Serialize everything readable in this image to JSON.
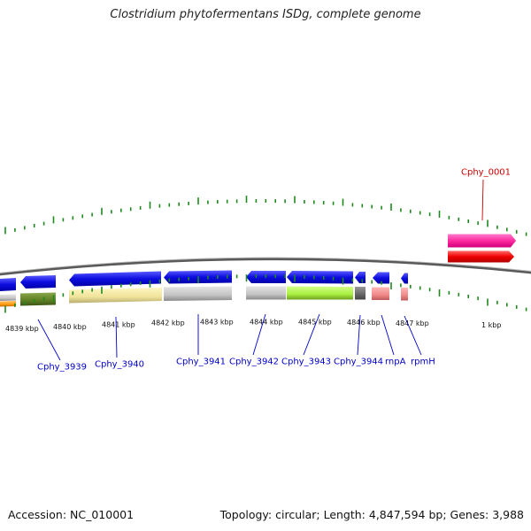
{
  "title": "Clostridium phytofermentans ISDg, complete genome",
  "footer": {
    "accession": "Accession: NC_010001",
    "summary": "Topology: circular; Length: 4,847,594 bp; Genes: 3,988"
  },
  "colors": {
    "backbone": "#6e6e6e",
    "tick": "#1e8a1e",
    "label_blue": "#0000cc",
    "label_red": "#cc0000"
  },
  "scale": {
    "unit": "kbp",
    "labels": [
      "4839 kbp",
      "4840 kbp",
      "4841 kbp",
      "4842 kbp",
      "4843 kbp",
      "4844 kbp",
      "4845 kbp",
      "4846 kbp",
      "4847 kbp",
      "1 kbp"
    ]
  },
  "genes": [
    {
      "name": "Cphy_0001",
      "strand": "+",
      "color": "#ff33aa",
      "label_color": "#cc0000"
    },
    {
      "name": "Cphy_3939",
      "strand": "-",
      "color": "#1010ee",
      "label_color": "#0000cc"
    },
    {
      "name": "Cphy_3940",
      "strand": "-",
      "color": "#1010ee",
      "label_color": "#0000cc"
    },
    {
      "name": "Cphy_3941",
      "strand": "-",
      "color": "#1010ee",
      "label_color": "#0000cc"
    },
    {
      "name": "Cphy_3942",
      "strand": "-",
      "color": "#1010ee",
      "label_color": "#0000cc"
    },
    {
      "name": "Cphy_3943",
      "strand": "-",
      "color": "#1010ee",
      "label_color": "#0000cc"
    },
    {
      "name": "Cphy_3944",
      "strand": "-",
      "color": "#1010ee",
      "label_color": "#0000cc"
    },
    {
      "name": "rnpA",
      "strand": "-",
      "color": "#1010ee",
      "label_color": "#0000cc"
    },
    {
      "name": "rpmH",
      "strand": "-",
      "color": "#1010ee",
      "label_color": "#0000cc"
    }
  ]
}
